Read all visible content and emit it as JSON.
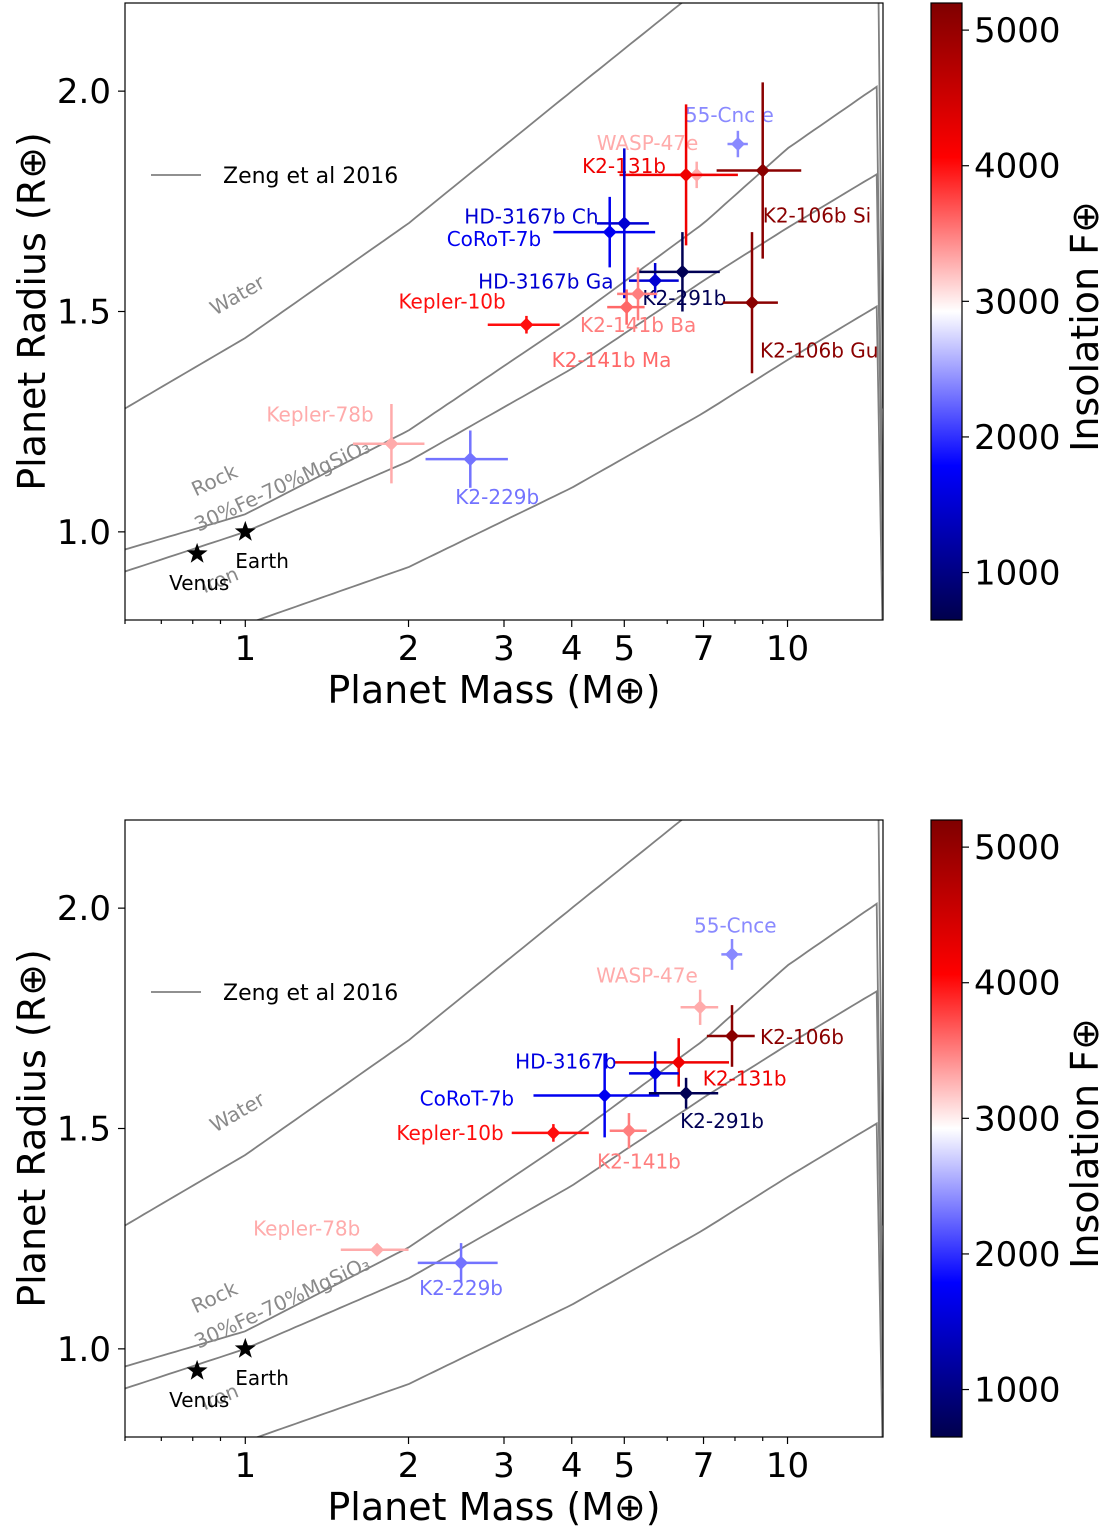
{
  "colors": {
    "curve": "#808080",
    "colormap": [
      "#00004c",
      "#0000ff",
      "#ffffff",
      "#ff0000",
      "#7f0000"
    ]
  },
  "chart_data": [
    {
      "type": "scatter",
      "xlabel": "Planet Mass (M⊕)",
      "ylabel": "Planet Radius (R⊕)",
      "colorbar_label": "Insolation F⊕",
      "xscale": "log",
      "xlim": [
        0.6,
        15
      ],
      "ylim": [
        0.8,
        2.2
      ],
      "xticks": [
        1,
        2,
        3,
        4,
        5,
        7,
        10
      ],
      "yticks": [
        1.0,
        1.5,
        2.0
      ],
      "colorbar_range": [
        650,
        5200
      ],
      "colorbar_ticks": [
        1000,
        2000,
        3000,
        4000,
        5000
      ],
      "legend": {
        "label": "Zeng et al 2016",
        "position": "upper-left"
      },
      "curves": [
        {
          "label": "Water",
          "mass": [
            0.6,
            1,
            2,
            4,
            7,
            15
          ],
          "radius": [
            1.28,
            1.44,
            1.7,
            2.0,
            2.24,
            2.6
          ]
        },
        {
          "label": "Rock",
          "mass": [
            0.6,
            1,
            2,
            4,
            7,
            10,
            15
          ],
          "radius": [
            0.96,
            1.04,
            1.23,
            1.48,
            1.7,
            1.87,
            2.02
          ],
          "hidden_label": true
        },
        {
          "label": "30%Fe-70%MgSiO₃",
          "mass": [
            0.6,
            1,
            2,
            4,
            7,
            10,
            15
          ],
          "radius": [
            0.91,
            1.0,
            1.16,
            1.37,
            1.57,
            1.69,
            1.82
          ]
        },
        {
          "label": "Iron",
          "mass": [
            0.6,
            1,
            2,
            4,
            7,
            10,
            15
          ],
          "radius": [
            0.72,
            0.79,
            0.92,
            1.1,
            1.27,
            1.39,
            1.52
          ]
        }
      ],
      "stars": [
        {
          "label": "Venus",
          "mass": 0.815,
          "radius": 0.95
        },
        {
          "label": "Earth",
          "mass": 1.0,
          "radius": 1.0
        }
      ],
      "planets": [
        {
          "name": "55-Cnc e",
          "mass": 8.1,
          "radius": 1.88,
          "xerr": [
            0.35,
            0.35
          ],
          "yerr": [
            0.03,
            0.03
          ],
          "insol": 2400
        },
        {
          "name": "WASP-47e",
          "mass": 6.8,
          "radius": 1.81,
          "xerr": [
            0.6,
            0.6
          ],
          "yerr": [
            0.03,
            0.03
          ],
          "insol": 3300
        },
        {
          "name": "K2-131b",
          "mass": 6.5,
          "radius": 1.81,
          "xerr": [
            1.6,
            1.6
          ],
          "yerr": [
            0.16,
            0.16
          ],
          "insol": 4200
        },
        {
          "name": "K2-106b Si",
          "mass": 9.0,
          "radius": 1.82,
          "xerr": [
            1.6,
            1.6
          ],
          "yerr": [
            0.2,
            0.2
          ],
          "insol": 5100
        },
        {
          "name": "HD-3167b Ch",
          "mass": 5.0,
          "radius": 1.7,
          "xerr": [
            0.55,
            0.55
          ],
          "yerr": [
            0.17,
            0.17
          ],
          "insol": 1500
        },
        {
          "name": "CoRoT-7b",
          "mass": 4.7,
          "radius": 1.68,
          "xerr": [
            1.0,
            1.0
          ],
          "yerr": [
            0.08,
            0.08
          ],
          "insol": 1700
        },
        {
          "name": "HD-3167b Ga",
          "mass": 5.7,
          "radius": 1.57,
          "xerr": [
            0.6,
            0.6
          ],
          "yerr": [
            0.04,
            0.04
          ],
          "insol": 1500
        },
        {
          "name": "K2-291b",
          "mass": 6.4,
          "radius": 1.59,
          "xerr": [
            1.1,
            1.1
          ],
          "yerr": [
            0.09,
            0.09
          ],
          "insol": 700
        },
        {
          "name": "K2-141b Ba",
          "mass": 5.3,
          "radius": 1.54,
          "xerr": [
            0.45,
            0.45
          ],
          "yerr": [
            0.06,
            0.06
          ],
          "insol": 3500
        },
        {
          "name": "K2-141b Ma",
          "mass": 5.05,
          "radius": 1.51,
          "xerr": [
            0.4,
            0.4
          ],
          "yerr": [
            0.04,
            0.04
          ],
          "insol": 3600
        },
        {
          "name": "Kepler-10b",
          "mass": 3.3,
          "radius": 1.47,
          "xerr": [
            0.5,
            0.5
          ],
          "yerr": [
            0.02,
            0.02
          ],
          "insol": 4000
        },
        {
          "name": "K2-106b Gu",
          "mass": 8.6,
          "radius": 1.52,
          "xerr": [
            1.0,
            1.0
          ],
          "yerr": [
            0.16,
            0.16
          ],
          "insol": 5100
        },
        {
          "name": "Kepler-78b",
          "mass": 1.86,
          "radius": 1.2,
          "xerr": [
            0.28,
            0.28
          ],
          "yerr": [
            0.09,
            0.09
          ],
          "insol": 3300
        },
        {
          "name": "K2-229b",
          "mass": 2.6,
          "radius": 1.165,
          "xerr": [
            0.45,
            0.45
          ],
          "yerr": [
            0.065,
            0.065
          ],
          "insol": 2300
        }
      ]
    },
    {
      "type": "scatter",
      "xlabel": "Planet Mass (M⊕)",
      "ylabel": "Planet Radius (R⊕)",
      "colorbar_label": "Insolation F⊕",
      "xscale": "log",
      "xlim": [
        0.6,
        15
      ],
      "ylim": [
        0.8,
        2.2
      ],
      "xticks": [
        1,
        2,
        3,
        4,
        5,
        7,
        10
      ],
      "yticks": [
        1.0,
        1.5,
        2.0
      ],
      "colorbar_range": [
        650,
        5200
      ],
      "colorbar_ticks": [
        1000,
        2000,
        3000,
        4000,
        5000
      ],
      "legend": {
        "label": "Zeng et al 2016",
        "position": "upper-left"
      },
      "curves": [
        {
          "label": "Water",
          "mass": [
            0.6,
            1,
            2,
            4,
            7,
            15
          ],
          "radius": [
            1.28,
            1.44,
            1.7,
            2.0,
            2.24,
            2.6
          ]
        },
        {
          "label": "Rock",
          "mass": [
            0.6,
            1,
            2,
            4,
            7,
            10,
            15
          ],
          "radius": [
            0.96,
            1.04,
            1.23,
            1.48,
            1.7,
            1.87,
            2.02
          ],
          "hidden_label": true
        },
        {
          "label": "30%Fe-70%MgSiO₃",
          "mass": [
            0.6,
            1,
            2,
            4,
            7,
            10,
            15
          ],
          "radius": [
            0.91,
            1.0,
            1.16,
            1.37,
            1.57,
            1.69,
            1.82
          ]
        },
        {
          "label": "Iron",
          "mass": [
            0.6,
            1,
            2,
            4,
            7,
            10,
            15
          ],
          "radius": [
            0.72,
            0.79,
            0.92,
            1.1,
            1.27,
            1.39,
            1.52
          ]
        }
      ],
      "stars": [
        {
          "label": "Venus",
          "mass": 0.815,
          "radius": 0.95
        },
        {
          "label": "Earth",
          "mass": 1.0,
          "radius": 1.0
        }
      ],
      "planets": [
        {
          "name": "55-Cnce",
          "mass": 7.9,
          "radius": 1.895,
          "xerr": [
            0.35,
            0.35
          ],
          "yerr": [
            0.035,
            0.035
          ],
          "insol": 2400
        },
        {
          "name": "WASP-47e",
          "mass": 6.9,
          "radius": 1.775,
          "xerr": [
            0.55,
            0.55
          ],
          "yerr": [
            0.04,
            0.04
          ],
          "insol": 3300
        },
        {
          "name": "K2-106b",
          "mass": 7.9,
          "radius": 1.71,
          "xerr": [
            0.8,
            0.8
          ],
          "yerr": [
            0.07,
            0.07
          ],
          "insol": 5100
        },
        {
          "name": "K2-131b",
          "mass": 6.3,
          "radius": 1.65,
          "xerr": [
            1.5,
            1.5
          ],
          "yerr": [
            0.055,
            0.055
          ],
          "insol": 4200
        },
        {
          "name": "HD-3167b",
          "mass": 5.7,
          "radius": 1.625,
          "xerr": [
            0.6,
            0.6
          ],
          "yerr": [
            0.05,
            0.05
          ],
          "insol": 1600
        },
        {
          "name": "CoRoT-7b",
          "mass": 4.6,
          "radius": 1.575,
          "xerr": [
            1.2,
            1.2
          ],
          "yerr": [
            0.095,
            0.095
          ],
          "insol": 1700
        },
        {
          "name": "K2-291b",
          "mass": 6.5,
          "radius": 1.58,
          "xerr": [
            0.95,
            0.95
          ],
          "yerr": [
            0.035,
            0.035
          ],
          "insol": 700
        },
        {
          "name": "Kepler-10b",
          "mass": 3.7,
          "radius": 1.49,
          "xerr": [
            0.6,
            0.6
          ],
          "yerr": [
            0.02,
            0.02
          ],
          "insol": 4000
        },
        {
          "name": "K2-141b",
          "mass": 5.1,
          "radius": 1.495,
          "xerr": [
            0.4,
            0.4
          ],
          "yerr": [
            0.04,
            0.04
          ],
          "insol": 3500
        },
        {
          "name": "Kepler-78b",
          "mass": 1.75,
          "radius": 1.225,
          "xerr": [
            0.25,
            0.25
          ],
          "yerr": [
            0.01,
            0.01
          ],
          "insol": 3300
        },
        {
          "name": "K2-229b",
          "mass": 2.5,
          "radius": 1.195,
          "xerr": [
            0.42,
            0.42
          ],
          "yerr": [
            0.045,
            0.045
          ],
          "insol": 2300
        }
      ]
    }
  ]
}
